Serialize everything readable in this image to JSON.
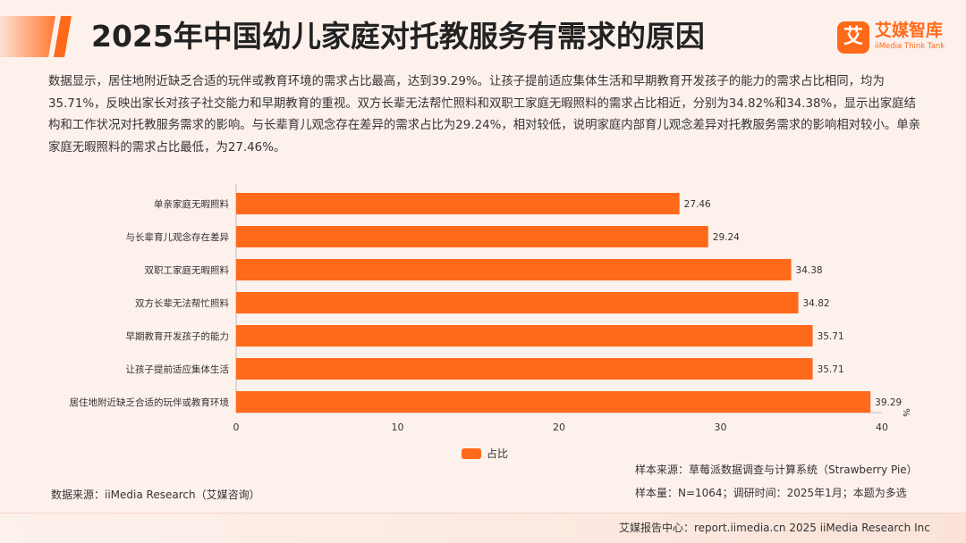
{
  "header": {
    "title": "2025年中国幼儿家庭对托教服务有需求的原因",
    "logo_mark": "艾",
    "logo_name": "艾媒智库",
    "logo_en": "iiMedia Think Tank"
  },
  "summary": "数据显示，居住地附近缺乏合适的玩伴或教育环境的需求占比最高，达到39.29%。让孩子提前适应集体生活和早期教育开发孩子的能力的需求占比相同，均为35.71%，反映出家长对孩子社交能力和早期教育的重视。双方长辈无法帮忙照料和双职工家庭无暇照料的需求占比相近，分别为34.82%和34.38%，显示出家庭结构和工作状况对托教服务需求的影响。与长辈育儿观念存在差异的需求占比为29.24%，相对较低，说明家庭内部育儿观念差异对托教服务需求的影响相对较小。单亲家庭无暇照料的需求占比最低，为27.46%。",
  "chart_data": {
    "type": "bar",
    "orientation": "horizontal",
    "categories": [
      "单亲家庭无暇照料",
      "与长辈育儿观念存在差异",
      "双职工家庭无暇照料",
      "双方长辈无法帮忙照料",
      "早期教育开发孩子的能力",
      "让孩子提前适应集体生活",
      "居住地附近缺乏合适的玩伴或教育环境"
    ],
    "series": [
      {
        "name": "占比",
        "values": [
          27.46,
          29.24,
          34.38,
          34.82,
          35.71,
          35.71,
          39.29
        ]
      }
    ],
    "value_labels": [
      "27.46",
      "29.24",
      "34.38",
      "34.82",
      "35.71",
      "35.71",
      "39.29"
    ],
    "xlim": [
      0,
      40
    ],
    "xticks": [
      0,
      10,
      20,
      30,
      40
    ],
    "xtick_labels": [
      "0",
      "10",
      "20",
      "30",
      "40"
    ],
    "unit_label": "%",
    "bar_color": "#ff6a1a",
    "grid": false,
    "legend_position": "bottom-center"
  },
  "sources": {
    "sample_source": "样本来源：草莓派数据调查与计算系统（Strawberry Pie）",
    "data_source": "数据来源：iiMedia Research（艾媒咨询）",
    "sample_size": "样本量：N=1064；调研时间：2025年1月；本题为多选"
  },
  "footer": {
    "text": "艾媒报告中心：report.iimedia.cn  2025 iiMedia Research Inc"
  },
  "colors": {
    "accent": "#ff6a1a",
    "background": "#fdf1ec"
  }
}
